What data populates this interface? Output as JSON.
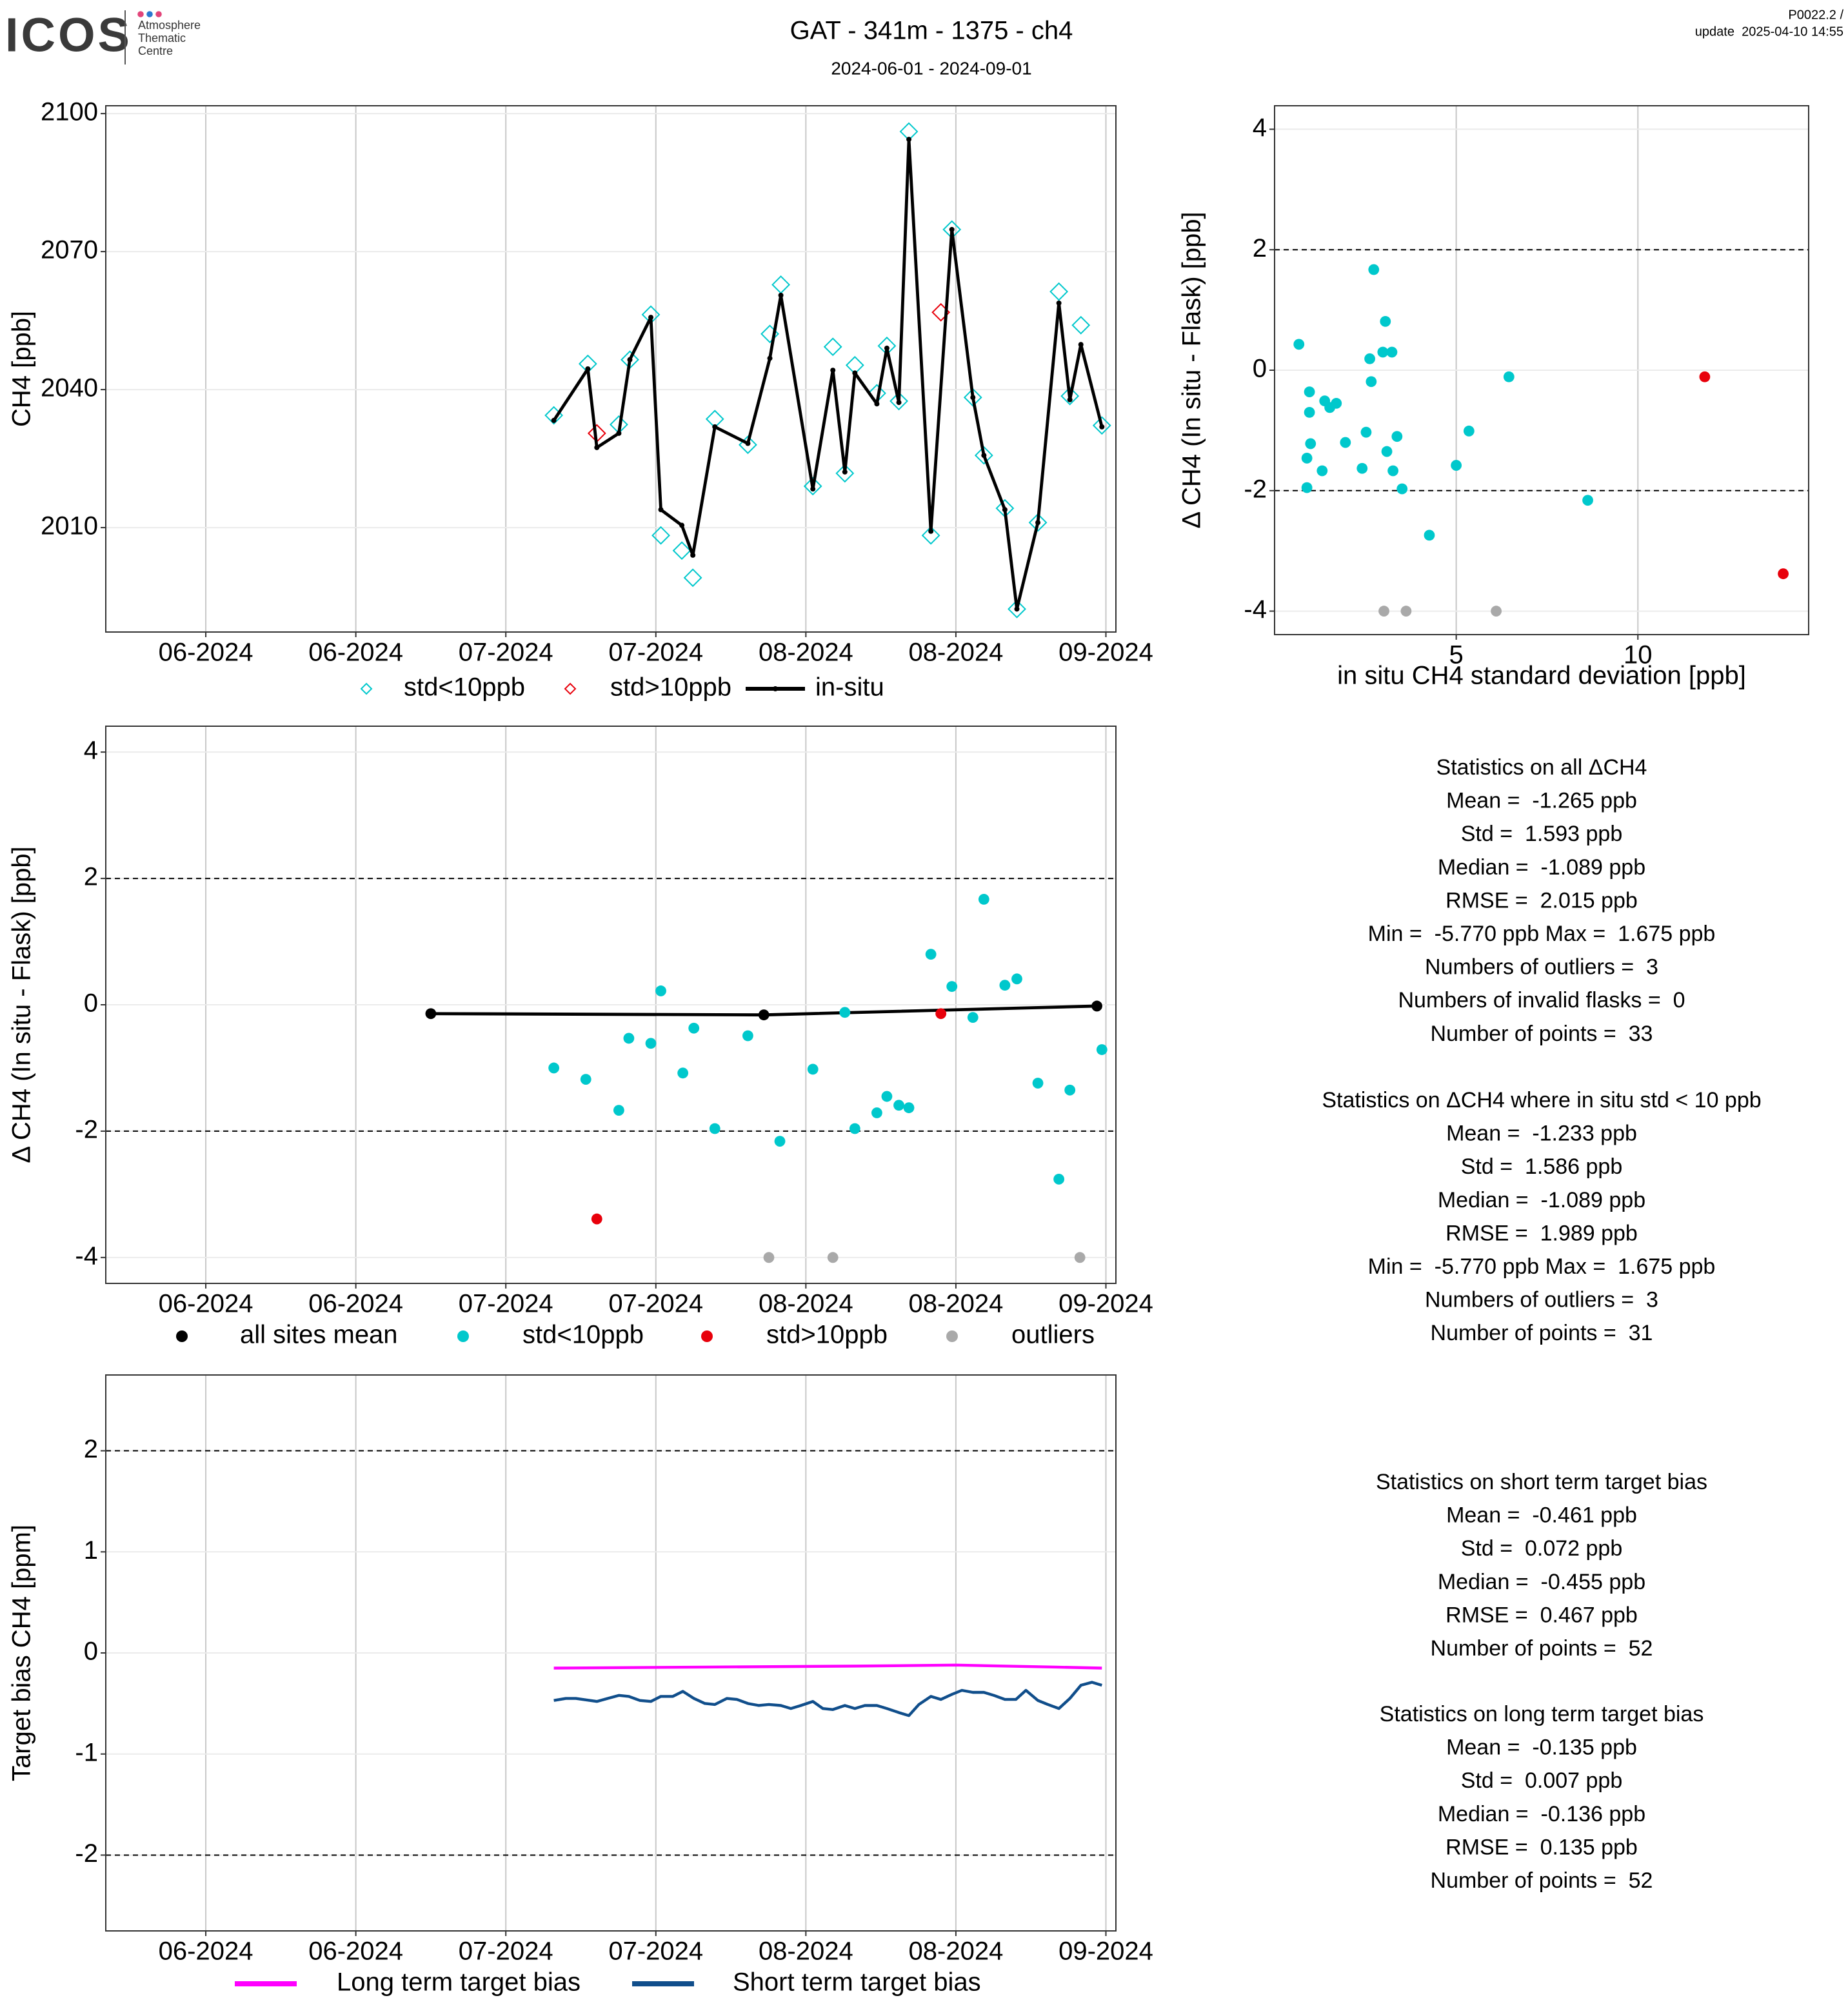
{
  "header": {
    "logo": "ICOS",
    "centre": [
      "Atmosphere",
      "Thematic",
      "Centre"
    ],
    "title": "GAT - 341m - 1375 - ch4",
    "subtitle": "2024-06-01 - 2024-09-01",
    "version": "P0022.2 /",
    "update": "update  2025-04-10 14:55"
  },
  "chart_data": [
    {
      "type": "line",
      "y_label": "CH4 [ppb]",
      "xlim": [
        -10,
        91
      ],
      "ylim": [
        1987.3,
        2101.7
      ],
      "xticks": [
        {
          "value": 0,
          "label": "06-2024"
        },
        {
          "value": 15,
          "label": "06-2024"
        },
        {
          "value": 30,
          "label": "07-2024"
        },
        {
          "value": 45,
          "label": "07-2024"
        },
        {
          "value": 60,
          "label": "08-2024"
        },
        {
          "value": 75,
          "label": "08-2024"
        },
        {
          "value": 90,
          "label": "09-2024"
        }
      ],
      "yticks": [
        2010,
        2040,
        2070,
        2100
      ],
      "grid": true,
      "series": [
        {
          "name": "std<10ppb",
          "color": "#00C8CC",
          "marker": "diamond",
          "x": [
            34.8,
            38.2,
            41.3,
            42.4,
            44.5,
            45.5,
            47.6,
            48.7,
            50.9,
            54.2,
            56.4,
            57.5,
            60.7,
            62.7,
            63.9,
            64.9,
            67.1,
            68.1,
            69.3,
            70.3,
            72.5,
            74.6,
            76.7,
            77.8,
            79.9,
            81.1,
            83.2,
            85.3,
            86.4,
            87.5,
            89.6
          ],
          "values": [
            2034.4,
            2045.6,
            2032.4,
            2046.5,
            2056.3,
            2008.3,
            2005.0,
            1999.1,
            2033.6,
            2028.0,
            2052.1,
            2062.8,
            2019.0,
            2049.3,
            2021.8,
            2045.3,
            2039.2,
            2049.5,
            2037.5,
            2096.1,
            2008.3,
            2074.8,
            2038.3,
            2025.7,
            2014.2,
            1992.3,
            2011.1,
            2061.3,
            2038.6,
            2054.0,
            2032.2
          ]
        },
        {
          "name": "std>10ppb",
          "color": "#E8000B",
          "marker": "diamond",
          "x": [
            39.1,
            73.5
          ],
          "values": [
            2030.5,
            2056.8
          ]
        },
        {
          "name": "in-situ",
          "color": "#000000",
          "marker": "line-point",
          "x": [
            34.8,
            38.2,
            39.1,
            41.3,
            42.4,
            44.5,
            45.5,
            47.6,
            48.7,
            50.9,
            54.2,
            56.4,
            57.5,
            60.7,
            62.7,
            63.9,
            64.9,
            67.1,
            68.1,
            69.3,
            70.3,
            72.5,
            74.6,
            76.7,
            77.8,
            79.9,
            81.1,
            83.2,
            85.3,
            86.4,
            87.5,
            89.6
          ],
          "values": [
            2033.3,
            2044.5,
            2027.4,
            2030.5,
            2046.5,
            2055.7,
            2013.9,
            2010.5,
            2004.0,
            2031.9,
            2028.3,
            2046.8,
            2060.5,
            2018.4,
            2044.2,
            2022.1,
            2043.6,
            2036.9,
            2049.0,
            2037.2,
            2094.4,
            2009.2,
            2074.8,
            2038.3,
            2025.7,
            2013.9,
            1992.3,
            2011.1,
            2058.8,
            2037.8,
            2049.8,
            2031.9
          ]
        }
      ]
    },
    {
      "type": "scatter",
      "x_label": "in situ CH4 standard deviation [ppb]",
      "y_label": "Δ CH4 (In situ - Flask) [ppb]",
      "xlim": [
        0,
        14.7
      ],
      "ylim": [
        -4.39,
        4.39
      ],
      "xticks": [
        5,
        10
      ],
      "yticks": [
        -4,
        -2,
        0,
        2,
        4
      ],
      "grid": true,
      "reference_lines": [
        -2,
        2
      ],
      "series": [
        {
          "color": "#00C8CC",
          "marker": "circle",
          "x": [
            0.67,
            0.96,
            0.96,
            0.99,
            0.89,
            0.89,
            1.31,
            1.38,
            1.52,
            1.7,
            1.95,
            2.41,
            2.52,
            2.62,
            2.66,
            2.73,
            2.98,
            3.05,
            3.23,
            3.09,
            3.26,
            3.37,
            3.51,
            4.26,
            5.0,
            5.35,
            6.45,
            8.62
          ],
          "values": [
            0.43,
            -0.36,
            -0.7,
            -1.22,
            -1.46,
            -1.95,
            -1.67,
            -0.51,
            -0.62,
            -0.55,
            -1.2,
            -1.63,
            -1.03,
            0.19,
            -0.19,
            1.67,
            0.3,
            0.81,
            0.3,
            -1.35,
            -1.67,
            -1.1,
            -1.97,
            -2.74,
            -1.58,
            -1.01,
            -0.11,
            -2.16
          ]
        },
        {
          "color": "#E8000B",
          "marker": "circle",
          "x": [
            11.84,
            14.0
          ],
          "values": [
            -0.11,
            -3.38
          ]
        },
        {
          "color": "#A9A9A9",
          "marker": "circle",
          "x": [
            3.01,
            3.62,
            6.1
          ],
          "values": [
            -4.0,
            -4.0,
            -4.0
          ]
        }
      ]
    },
    {
      "type": "scatter",
      "y_label": "Δ CH4 (In situ - Flask) [ppb]",
      "xlim": [
        -10,
        91
      ],
      "ylim": [
        -4.41,
        4.41
      ],
      "xticks": [
        {
          "value": 0,
          "label": "06-2024"
        },
        {
          "value": 15,
          "label": "06-2024"
        },
        {
          "value": 30,
          "label": "07-2024"
        },
        {
          "value": 45,
          "label": "07-2024"
        },
        {
          "value": 60,
          "label": "08-2024"
        },
        {
          "value": 75,
          "label": "08-2024"
        },
        {
          "value": 90,
          "label": "09-2024"
        }
      ],
      "yticks": [
        -4,
        -2,
        0,
        2,
        4
      ],
      "grid": true,
      "reference_lines": [
        -2,
        2
      ],
      "series": [
        {
          "name": "all sites mean",
          "color": "#000000",
          "marker": "line-point",
          "x": [
            22.5,
            55.8,
            89.1
          ],
          "values": [
            -0.14,
            -0.16,
            -0.02
          ]
        },
        {
          "name": "std<10ppb",
          "color": "#00C8CC",
          "marker": "circle",
          "x": [
            34.8,
            38.0,
            41.3,
            42.3,
            44.5,
            45.5,
            47.7,
            48.8,
            50.9,
            54.2,
            57.4,
            60.7,
            63.9,
            64.9,
            67.1,
            68.1,
            69.3,
            70.3,
            72.5,
            74.6,
            76.7,
            77.8,
            79.9,
            81.1,
            83.2,
            85.3,
            86.4,
            89.6
          ],
          "values": [
            -1.0,
            -1.18,
            -1.67,
            -0.53,
            -0.61,
            0.22,
            -1.08,
            -0.37,
            -1.96,
            -0.49,
            -2.16,
            -1.02,
            -0.12,
            -1.96,
            -1.71,
            -1.45,
            -1.59,
            -1.63,
            0.8,
            0.29,
            -0.2,
            1.67,
            0.31,
            0.41,
            -1.24,
            -2.76,
            -1.35,
            -0.71
          ]
        },
        {
          "name": "std>10ppb",
          "color": "#E8000B",
          "marker": "circle",
          "x": [
            39.1,
            73.5
          ],
          "values": [
            -3.39,
            -0.14
          ]
        },
        {
          "name": "outliers",
          "color": "#A9A9A9",
          "marker": "circle",
          "x": [
            56.3,
            62.7,
            87.4
          ],
          "values": [
            -4.0,
            -4.0,
            -4.0
          ]
        }
      ]
    },
    {
      "type": "line",
      "y_label": "Target bias CH4 [ppm]",
      "xlim": [
        -10,
        91
      ],
      "ylim": [
        -2.75,
        2.75
      ],
      "xticks": [
        {
          "value": 0,
          "label": "06-2024"
        },
        {
          "value": 15,
          "label": "06-2024"
        },
        {
          "value": 30,
          "label": "07-2024"
        },
        {
          "value": 45,
          "label": "07-2024"
        },
        {
          "value": 60,
          "label": "08-2024"
        },
        {
          "value": 75,
          "label": "08-2024"
        },
        {
          "value": 90,
          "label": "09-2024"
        }
      ],
      "yticks": [
        -2,
        -1,
        0,
        1,
        2
      ],
      "grid": true,
      "reference_lines": [
        -2,
        2
      ],
      "series": [
        {
          "name": "Long term target bias",
          "color": "#FF00FF",
          "marker": "line",
          "x": [
            34.8,
            50,
            65,
            75,
            85,
            89.6
          ],
          "values": [
            -0.15,
            -0.14,
            -0.13,
            -0.12,
            -0.14,
            -0.15
          ]
        },
        {
          "name": "Short term target bias",
          "color": "#104E8B",
          "marker": "line",
          "x": [
            34.8,
            36.0,
            37.0,
            39.1,
            40.2,
            41.3,
            42.3,
            43.4,
            44.5,
            45.5,
            46.7,
            47.7,
            48.8,
            49.9,
            50.9,
            52.1,
            53.1,
            54.2,
            55.3,
            56.3,
            57.5,
            58.5,
            59.5,
            60.7,
            61.7,
            62.7,
            63.9,
            64.9,
            65.9,
            67.1,
            68.1,
            69.3,
            70.3,
            71.3,
            72.5,
            73.5,
            74.6,
            75.6,
            76.7,
            77.8,
            78.8,
            79.9,
            81.0,
            82.0,
            83.2,
            84.2,
            85.3,
            86.4,
            87.5,
            88.6,
            89.6
          ],
          "values": [
            -0.47,
            -0.45,
            -0.45,
            -0.48,
            -0.45,
            -0.42,
            -0.43,
            -0.47,
            -0.48,
            -0.43,
            -0.43,
            -0.38,
            -0.45,
            -0.5,
            -0.51,
            -0.45,
            -0.46,
            -0.5,
            -0.52,
            -0.51,
            -0.52,
            -0.55,
            -0.52,
            -0.48,
            -0.55,
            -0.56,
            -0.52,
            -0.55,
            -0.52,
            -0.52,
            -0.55,
            -0.59,
            -0.62,
            -0.51,
            -0.43,
            -0.46,
            -0.41,
            -0.37,
            -0.39,
            -0.39,
            -0.42,
            -0.46,
            -0.46,
            -0.37,
            -0.47,
            -0.51,
            -0.55,
            -0.45,
            -0.32,
            -0.29,
            -0.32
          ]
        }
      ]
    }
  ],
  "statistics": [
    {
      "title": "Statistics on all ΔCH4",
      "lines": [
        "Mean =  -1.265 ppb",
        "Std =  1.593 ppb",
        "Median =  -1.089 ppb",
        "RMSE =  2.015 ppb",
        "Min =  -5.770 ppb Max =  1.675 ppb",
        "Numbers of outliers =  3",
        "Numbers of invalid flasks =  0",
        "Number of points =  33"
      ]
    },
    {
      "title": "Statistics on ΔCH4 where in situ std < 10 ppb",
      "lines": [
        "Mean =  -1.233 ppb",
        "Std =  1.586 ppb",
        "Median =  -1.089 ppb",
        "RMSE =  1.989 ppb",
        "Min =  -5.770 ppb Max =  1.675 ppb",
        "Numbers of outliers =  3",
        "Number of points =  31"
      ]
    },
    {
      "title": "Statistics on short term target bias",
      "lines": [
        "Mean =  -0.461 ppb",
        "Std =  0.072 ppb",
        "Median =  -0.455 ppb",
        "RMSE =  0.467 ppb",
        "Number of points =  52"
      ]
    },
    {
      "title": "Statistics on long term target bias",
      "lines": [
        "Mean =  -0.135 ppb",
        "Std =  0.007 ppb",
        "Median =  -0.136 ppb",
        "RMSE =  0.135 ppb",
        "Number of points =  52"
      ]
    }
  ]
}
